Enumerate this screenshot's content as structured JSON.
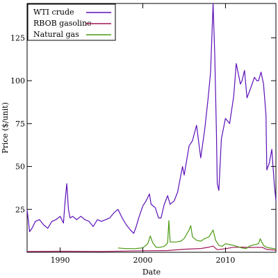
{
  "chart_data": {
    "type": "line",
    "title": "",
    "xlabel": "Date",
    "ylabel": "Price ($/unit)",
    "xlim": [
      1986.0,
      2016.1
    ],
    "ylim": [
      0,
      145
    ],
    "x_ticks": [
      1990,
      2000,
      2010
    ],
    "y_ticks": [
      25,
      50,
      75,
      100,
      125
    ],
    "grid": false,
    "legend_position": "top-left",
    "series": [
      {
        "name": "WTI crude",
        "color": "#5b0fb9",
        "x": [
          1986.0,
          1986.3,
          1986.6,
          1987.0,
          1987.5,
          1988.0,
          1988.5,
          1989.0,
          1989.5,
          1990.0,
          1990.4,
          1990.6,
          1990.8,
          1991.0,
          1991.2,
          1991.5,
          1992.0,
          1992.5,
          1993.0,
          1993.5,
          1994.0,
          1994.5,
          1995.0,
          1995.5,
          1996.0,
          1996.5,
          1997.0,
          1997.5,
          1998.0,
          1998.5,
          1998.9,
          1999.2,
          1999.5,
          2000.0,
          2000.4,
          2000.8,
          2001.0,
          2001.5,
          2001.9,
          2002.2,
          2002.6,
          2003.0,
          2003.3,
          2003.8,
          2004.2,
          2004.8,
          2005.0,
          2005.6,
          2006.0,
          2006.5,
          2007.0,
          2007.5,
          2007.9,
          2008.2,
          2008.5,
          2008.7,
          2008.9,
          2009.0,
          2009.2,
          2009.5,
          2010.0,
          2010.5,
          2011.0,
          2011.3,
          2011.8,
          2012.0,
          2012.3,
          2012.6,
          2013.0,
          2013.5,
          2013.8,
          2014.0,
          2014.3,
          2014.6,
          2014.9,
          2015.0,
          2015.3,
          2015.6,
          2015.9,
          2016.1
        ],
        "y": [
          25,
          12,
          14,
          18,
          19,
          16,
          14,
          18,
          19,
          21,
          17,
          30,
          40,
          25,
          20,
          21,
          19,
          21,
          19,
          18,
          15,
          19,
          18,
          19,
          20,
          23,
          25,
          20,
          16,
          13,
          11,
          15,
          20,
          27,
          30,
          34,
          28,
          26,
          20,
          20,
          28,
          33,
          28,
          30,
          35,
          50,
          45,
          62,
          65,
          74,
          55,
          72,
          90,
          105,
          145,
          115,
          70,
          40,
          36,
          66,
          78,
          75,
          91,
          110,
          98,
          100,
          106,
          90,
          95,
          102,
          100,
          100,
          105,
          98,
          80,
          48,
          52,
          60,
          40,
          30
        ]
      },
      {
        "name": "RBOB gasoline",
        "color": "#a1165a",
        "x": [
          1986.0,
          1990.0,
          1995.0,
          2000.0,
          2003.0,
          2005.0,
          2006.0,
          2007.0,
          2008.0,
          2008.5,
          2009.0,
          2010.0,
          2011.0,
          2012.0,
          2013.0,
          2014.0,
          2014.5,
          2015.0,
          2016.1
        ],
        "y": [
          0.5,
          0.6,
          0.5,
          0.9,
          1.0,
          1.8,
          2.0,
          2.2,
          3.0,
          3.6,
          1.5,
          2.1,
          2.9,
          3.0,
          2.8,
          2.9,
          2.8,
          1.6,
          1.2
        ]
      },
      {
        "name": "Natural gas",
        "color": "#4a9a10",
        "x": [
          1997.0,
          1997.5,
          1998.0,
          1999.0,
          2000.0,
          2000.6,
          2000.9,
          2001.2,
          2001.6,
          2002.0,
          2002.6,
          2003.0,
          2003.15,
          2003.3,
          2004.0,
          2004.6,
          2005.0,
          2005.6,
          2005.8,
          2006.0,
          2006.5,
          2007.0,
          2007.5,
          2008.0,
          2008.5,
          2008.8,
          2009.2,
          2009.6,
          2010.0,
          2011.0,
          2012.0,
          2012.5,
          2013.0,
          2014.0,
          2014.2,
          2014.6,
          2015.0,
          2016.1
        ],
        "y": [
          2.5,
          2.3,
          2.2,
          2.1,
          2.6,
          5.0,
          9.5,
          5.5,
          3.0,
          2.8,
          3.5,
          5.5,
          18.5,
          6.0,
          6.0,
          6.5,
          8.0,
          13.0,
          15.5,
          9.0,
          7.0,
          6.5,
          8.0,
          9.0,
          13.0,
          7.0,
          4.0,
          3.5,
          5.0,
          4.0,
          2.5,
          2.2,
          3.8,
          5.0,
          7.8,
          4.0,
          2.8,
          2.0
        ]
      }
    ]
  }
}
